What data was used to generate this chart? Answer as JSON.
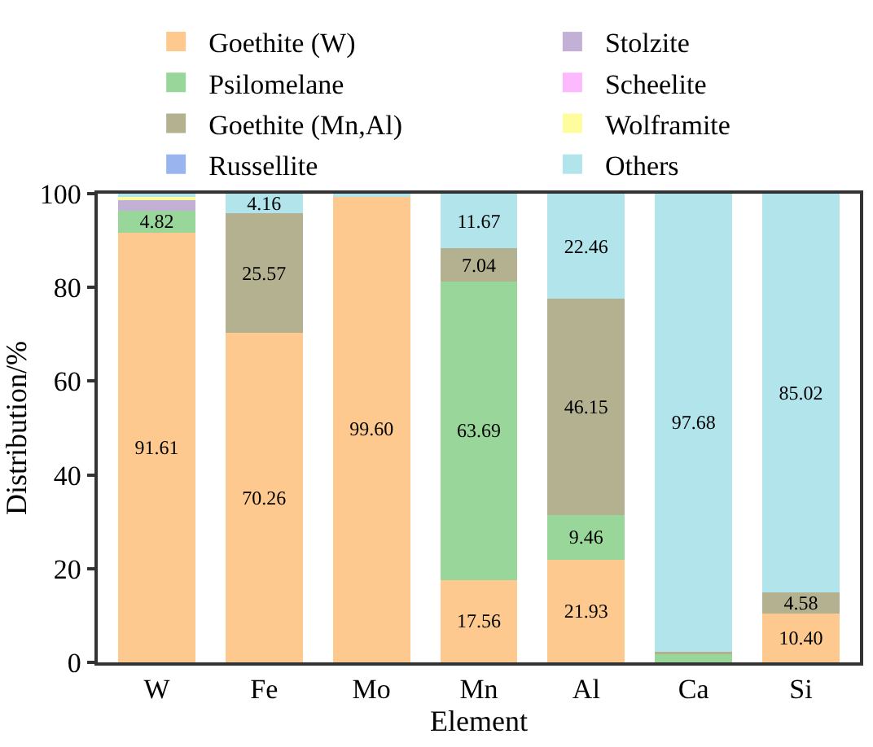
{
  "chart_data": {
    "type": "bar",
    "stacked": true,
    "xlabel": "Element",
    "ylabel": "Distribution/%",
    "categories": [
      "W",
      "Fe",
      "Mo",
      "Mn",
      "Al",
      "Ca",
      "Si"
    ],
    "ylim": [
      0,
      100
    ],
    "yticks": [
      0,
      20,
      40,
      60,
      80,
      100
    ],
    "grid": false,
    "legend": "top",
    "series": [
      {
        "name": "Goethite (W)",
        "color": "#fdc98f",
        "values": [
          91.61,
          70.26,
          99.6,
          17.56,
          21.93,
          null,
          10.4
        ],
        "value_labels": [
          "91.61",
          "70.26",
          "99.60",
          "17.56",
          "21.93",
          null,
          "10.40"
        ]
      },
      {
        "name": "Psilomelane",
        "color": "#99d699",
        "values": [
          4.82,
          null,
          null,
          63.69,
          9.46,
          1.9,
          null
        ],
        "value_labels": [
          "4.82",
          null,
          null,
          "63.69",
          "9.46",
          null,
          null
        ]
      },
      {
        "name": "Goethite (Mn,Al)",
        "color": "#b3b190",
        "values": [
          null,
          25.57,
          null,
          7.04,
          46.15,
          0.4,
          4.58
        ],
        "value_labels": [
          null,
          "25.57",
          null,
          "7.04",
          "46.15",
          null,
          "4.58"
        ]
      },
      {
        "name": "Russellite",
        "color": "#99b4ee",
        "values": [
          null,
          null,
          null,
          null,
          null,
          null,
          null
        ]
      },
      {
        "name": "Stolzite",
        "color": "#c2b0d6",
        "values": [
          2.3,
          null,
          null,
          null,
          null,
          null,
          null
        ]
      },
      {
        "name": "Scheelite",
        "color": "#fdb9fd",
        "values": [
          null,
          null,
          null,
          null,
          null,
          null,
          null
        ]
      },
      {
        "name": "Wolframite",
        "color": "#fdfd9e",
        "values": [
          0.6,
          null,
          null,
          null,
          null,
          null,
          null
        ]
      },
      {
        "name": "Others",
        "color": "#b1e4eb",
        "values": [
          0.7,
          4.16,
          0.4,
          11.67,
          22.46,
          97.68,
          85.02
        ],
        "value_labels": [
          null,
          "4.16",
          null,
          "11.67",
          "22.46",
          "97.68",
          "85.02"
        ]
      }
    ]
  }
}
